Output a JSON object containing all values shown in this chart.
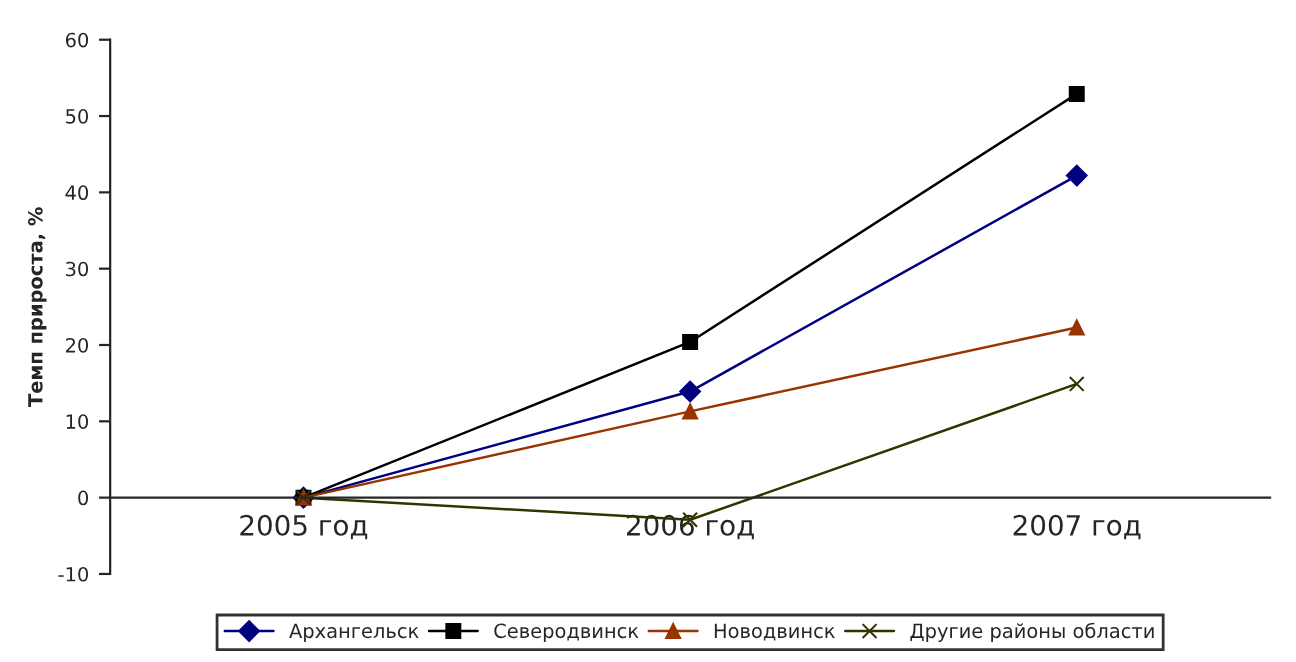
{
  "chart_data": {
    "type": "line",
    "ylabel": "Темп прироста, %",
    "categories": [
      "2005 год",
      "2006 год",
      "2007 год"
    ],
    "series": [
      {
        "name": "Архангельск",
        "color": "#000080",
        "marker": "diamond",
        "values": [
          0,
          13.9,
          42.2
        ]
      },
      {
        "name": "Северодвинск",
        "color": "#000000",
        "marker": "square",
        "values": [
          0,
          20.4,
          52.9
        ]
      },
      {
        "name": "Новодвинск",
        "color": "#993300",
        "marker": "triangle",
        "values": [
          0,
          11.3,
          22.3
        ]
      },
      {
        "name": "Другие районы области",
        "color": "#333300",
        "marker": "cross",
        "values": [
          0,
          -2.9,
          14.9
        ]
      }
    ],
    "ylim": [
      -10,
      60
    ],
    "yticks": [
      -10,
      0,
      10,
      20,
      30,
      40,
      50,
      60
    ],
    "grid": false,
    "legend": "bottom",
    "line_style": "solid"
  }
}
